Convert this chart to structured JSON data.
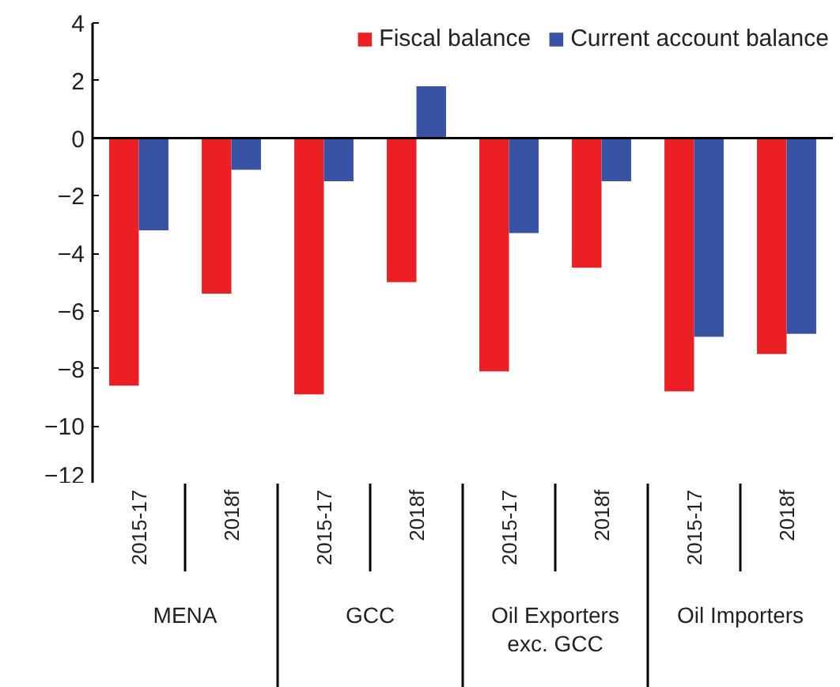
{
  "chart_data": {
    "type": "bar",
    "categories": [
      "2015-17",
      "2018f",
      "2015-17",
      "2018f",
      "2015-17",
      "2018f",
      "2015-17",
      "2018f"
    ],
    "series": [
      {
        "name": "Fiscal balance",
        "color": "#ec2024",
        "values": [
          -8.6,
          -5.4,
          -8.9,
          -5.0,
          -8.1,
          -4.5,
          -8.8,
          -7.5
        ]
      },
      {
        "name": "Current account balance",
        "color": "#3953a4",
        "values": [
          -3.2,
          -1.1,
          -1.5,
          1.8,
          -3.3,
          -1.5,
          -6.9,
          -6.8
        ]
      }
    ],
    "annotations": [
      "MENA",
      "GCC",
      "Oil Exporters\nexc. GCC",
      "Oil Importers"
    ],
    "ylim": [
      -12,
      4
    ],
    "yticks": [
      -12,
      -10,
      -8,
      -6,
      -4,
      -2,
      0,
      2,
      4
    ],
    "ref_lines": [
      {
        "axis": "y",
        "value": 0,
        "color": "#000000"
      }
    ],
    "grid": false,
    "legend": "top right"
  }
}
